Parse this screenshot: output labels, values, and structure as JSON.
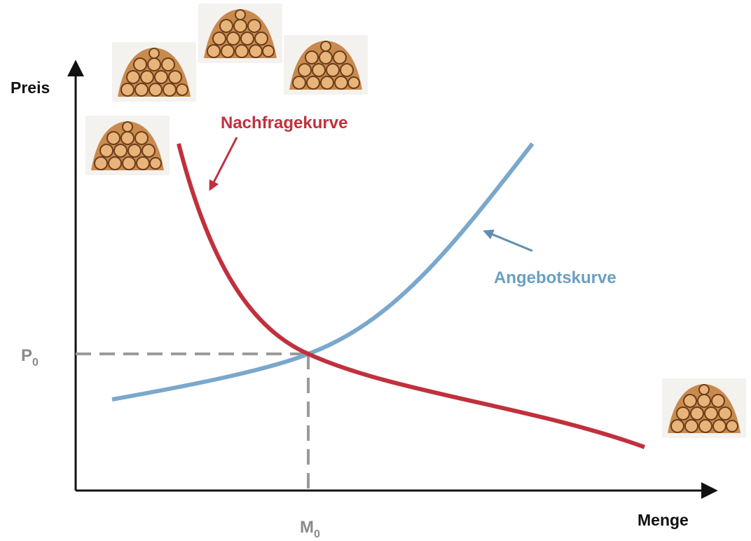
{
  "axes": {
    "y_label": "Preis",
    "x_label": "Menge"
  },
  "markers": {
    "price": {
      "main": "P",
      "sub": "0"
    },
    "quantity": {
      "main": "M",
      "sub": "0"
    }
  },
  "curves": {
    "demand": {
      "label": "Nachfragekurve"
    },
    "supply": {
      "label": "Angebotskurve"
    }
  }
}
